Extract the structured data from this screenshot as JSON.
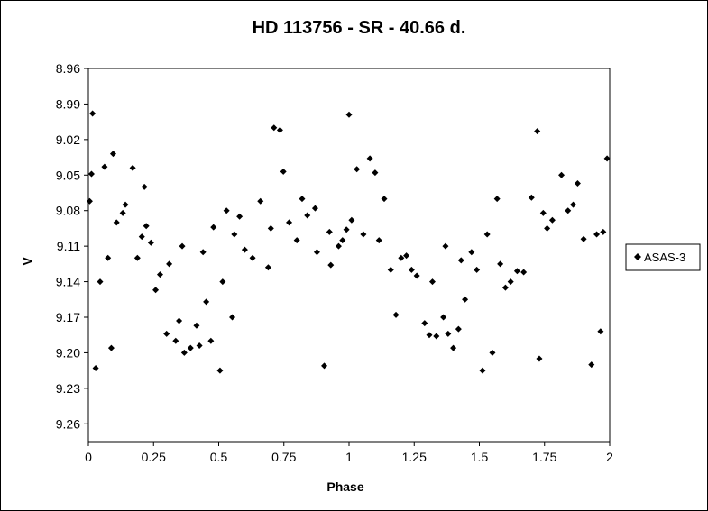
{
  "chart_data": {
    "type": "scatter",
    "title": "HD 113756 - SR - 40.66 d.",
    "xlabel": "Phase",
    "ylabel": "V",
    "xlim": [
      0,
      2
    ],
    "ylim": [
      8.96,
      9.275
    ],
    "y_inverted": true,
    "x_ticks": [
      "0",
      "0.25",
      "0.5",
      "0.75",
      "1",
      "1.25",
      "1.5",
      "1.75",
      "2"
    ],
    "y_ticks": [
      "8.96",
      "8.99",
      "9.02",
      "9.05",
      "9.08",
      "9.11",
      "9.14",
      "9.17",
      "9.20",
      "9.23",
      "9.26"
    ],
    "grid": false,
    "legend_position": "right",
    "marker": "diamond",
    "marker_color": "#000000",
    "series": [
      {
        "name": "ASAS-3",
        "x": [
          0.016,
          0.028,
          0.062,
          0.088,
          0.012,
          0.095,
          0.17,
          0.132,
          0.215,
          0.24,
          0.258,
          0.3,
          0.335,
          0.348,
          0.368,
          0.392,
          0.415,
          0.426,
          0.452,
          0.47,
          0.505,
          0.515,
          0.552,
          0.6,
          0.66,
          0.712,
          0.735,
          0.748,
          0.82,
          0.877,
          0.905,
          0.93,
          0.975,
          1.0,
          1.03,
          1.08,
          1.1,
          1.135,
          1.18,
          1.24,
          1.29,
          1.308,
          1.335,
          1.362,
          1.38,
          1.4,
          1.42,
          1.445,
          1.49,
          1.512,
          1.55,
          1.568,
          1.62,
          1.645,
          1.7,
          1.722,
          1.73,
          1.745,
          1.815,
          1.877,
          1.9,
          1.93,
          1.965,
          1.99,
          0.005,
          0.045,
          0.075,
          0.108,
          0.142,
          0.188,
          0.205,
          0.222,
          0.275,
          0.31,
          0.36,
          0.44,
          0.48,
          0.53,
          0.56,
          0.58,
          0.63,
          0.69,
          0.7,
          0.77,
          0.8,
          0.84,
          0.87,
          0.925,
          0.96,
          0.99,
          1.01,
          1.055,
          1.115,
          1.16,
          1.2,
          1.22,
          1.26,
          1.32,
          1.37,
          1.43,
          1.47,
          1.53,
          1.58,
          1.6,
          1.67,
          1.76,
          1.78,
          1.84,
          1.86,
          1.95,
          1.975
        ],
        "values": [
          8.998,
          9.213,
          9.043,
          9.196,
          9.049,
          9.032,
          9.044,
          9.082,
          9.06,
          9.107,
          9.147,
          9.184,
          9.19,
          9.173,
          9.2,
          9.196,
          9.177,
          9.194,
          9.157,
          9.19,
          9.215,
          9.14,
          9.17,
          9.113,
          9.072,
          9.01,
          9.012,
          9.047,
          9.07,
          9.115,
          9.211,
          9.126,
          9.105,
          8.999,
          9.045,
          9.036,
          9.048,
          9.07,
          9.168,
          9.13,
          9.175,
          9.185,
          9.186,
          9.17,
          9.184,
          9.196,
          9.18,
          9.155,
          9.13,
          9.215,
          9.2,
          9.07,
          9.14,
          9.131,
          9.069,
          9.013,
          9.205,
          9.082,
          9.05,
          9.057,
          9.104,
          9.21,
          9.182,
          9.036,
          9.072,
          9.14,
          9.12,
          9.09,
          9.075,
          9.12,
          9.102,
          9.093,
          9.134,
          9.125,
          9.11,
          9.115,
          9.094,
          9.08,
          9.1,
          9.085,
          9.12,
          9.128,
          9.095,
          9.09,
          9.105,
          9.084,
          9.078,
          9.098,
          9.11,
          9.096,
          9.088,
          9.1,
          9.105,
          9.13,
          9.12,
          9.118,
          9.135,
          9.14,
          9.11,
          9.122,
          9.115,
          9.1,
          9.125,
          9.145,
          9.132,
          9.095,
          9.088,
          9.08,
          9.075,
          9.1,
          9.098
        ]
      }
    ]
  },
  "legend": {
    "label": "ASAS-3"
  }
}
